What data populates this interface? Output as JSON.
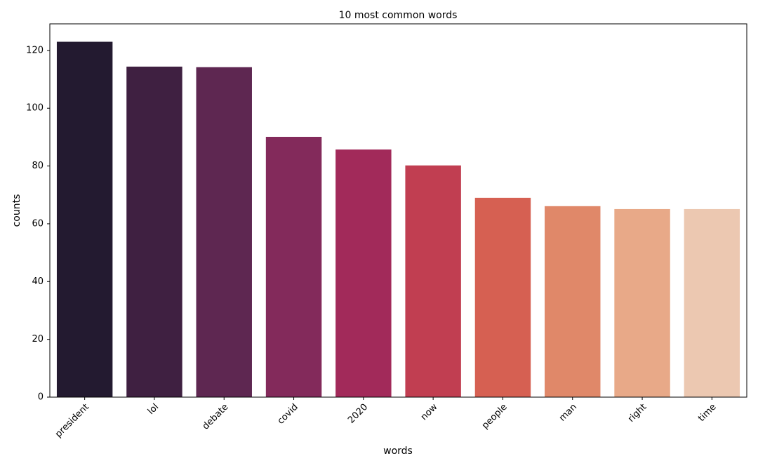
{
  "chart_data": {
    "type": "bar",
    "title": "10 most common words",
    "x_label": "words",
    "y_label": "counts",
    "categories": [
      "president",
      "lol",
      "debate",
      "covid",
      "2020",
      "now",
      "people",
      "man",
      "right",
      "time"
    ],
    "values": [
      123,
      114.4,
      114.2,
      90.1,
      85.7,
      80.2,
      69,
      66.1,
      65.1,
      65.1
    ],
    "colors": [
      "#231a30",
      "#3f2041",
      "#5e2751",
      "#832a5b",
      "#a22a5a",
      "#c13e51",
      "#d66052",
      "#e08869",
      "#e8a988",
      "#ecc8b1"
    ],
    "ylim": [
      0,
      129.2
    ],
    "yticks": [
      0,
      20,
      40,
      60,
      80,
      100,
      120
    ],
    "grid": false
  }
}
